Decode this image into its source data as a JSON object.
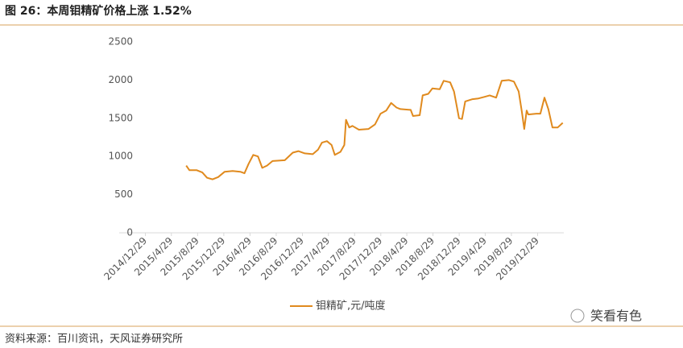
{
  "header": {
    "title": "图 26：本周钼精矿价格上涨 1.52%"
  },
  "chart_data": {
    "type": "line",
    "x": [
      "2015/7/7",
      "2015/7/22",
      "2015/8/25",
      "2015/9/20",
      "2015/10/12",
      "2015/11/7",
      "2015/12/3",
      "2016/1/2",
      "2016/2/8",
      "2016/3/15",
      "2016/4/3",
      "2016/4/22",
      "2016/5/14",
      "2016/6/5",
      "2016/6/25",
      "2016/7/17",
      "2016/8/12",
      "2016/10/8",
      "2016/11/14",
      "2016/12/10",
      "2017/1/9",
      "2017/2/15",
      "2017/3/12",
      "2017/3/30",
      "2017/4/22",
      "2017/5/14",
      "2017/5/29",
      "2017/6/24",
      "2017/7/12",
      "2017/7/20",
      "2017/8/4",
      "2017/8/19",
      "2017/9/18",
      "2017/11/2",
      "2017/12/2",
      "2017/12/28",
      "2018/1/23",
      "2018/2/15",
      "2018/3/12",
      "2018/3/30",
      "2018/5/17",
      "2018/5/28",
      "2018/6/28",
      "2018/7/12",
      "2018/8/7",
      "2018/8/26",
      "2018/9/29",
      "2018/10/18",
      "2018/11/17",
      "2018/12/5",
      "2018/12/28",
      "2019/1/11",
      "2019/1/26",
      "2019/3/1",
      "2019/3/29",
      "2019/4/25",
      "2019/5/20",
      "2019/6/19",
      "2019/7/15",
      "2019/8/18",
      "2019/9/10",
      "2019/10/2",
      "2019/10/17",
      "2019/10/28",
      "2019/11/8",
      "2019/11/16",
      "2019/12/23",
      "2020/1/11",
      "2020/1/30",
      "2020/2/17",
      "2020/3/7",
      "2020/4/1",
      "2020/4/24"
    ],
    "series": [
      {
        "name": "钼精矿,元/吨度",
        "color": "#e08a1e",
        "values": [
          880,
          820,
          820,
          790,
          720,
          700,
          730,
          800,
          810,
          800,
          780,
          900,
          1020,
          1000,
          850,
          880,
          940,
          950,
          1050,
          1070,
          1040,
          1030,
          1090,
          1180,
          1200,
          1150,
          1020,
          1060,
          1150,
          1480,
          1380,
          1400,
          1350,
          1360,
          1420,
          1560,
          1600,
          1700,
          1640,
          1620,
          1610,
          1530,
          1540,
          1800,
          1820,
          1890,
          1880,
          1990,
          1970,
          1850,
          1500,
          1490,
          1720,
          1750,
          1760,
          1780,
          1800,
          1770,
          1990,
          2000,
          1980,
          1850,
          1580,
          1360,
          1600,
          1550,
          1560,
          1560,
          1770,
          1620,
          1380,
          1380,
          1440
        ]
      }
    ],
    "xlim": [
      "2014/8/29",
      "2020/4/29"
    ],
    "xticks": [
      "2014/12/29",
      "2015/4/29",
      "2015/8/29",
      "2015/12/29",
      "2016/4/29",
      "2016/8/29",
      "2016/12/29",
      "2017/4/29",
      "2017/8/29",
      "2017/12/29",
      "2018/4/29",
      "2018/8/29",
      "2018/12/29",
      "2019/4/29",
      "2019/8/29",
      "2019/12/29"
    ],
    "ylim": [
      0,
      2500
    ],
    "yticks": [
      0,
      500,
      1000,
      1500,
      2000,
      2500
    ],
    "grid": false,
    "legend": "bottom"
  },
  "footer": {
    "source": "资料来源：百川资讯，天风证券研究所",
    "watermark": "笑看有色"
  }
}
